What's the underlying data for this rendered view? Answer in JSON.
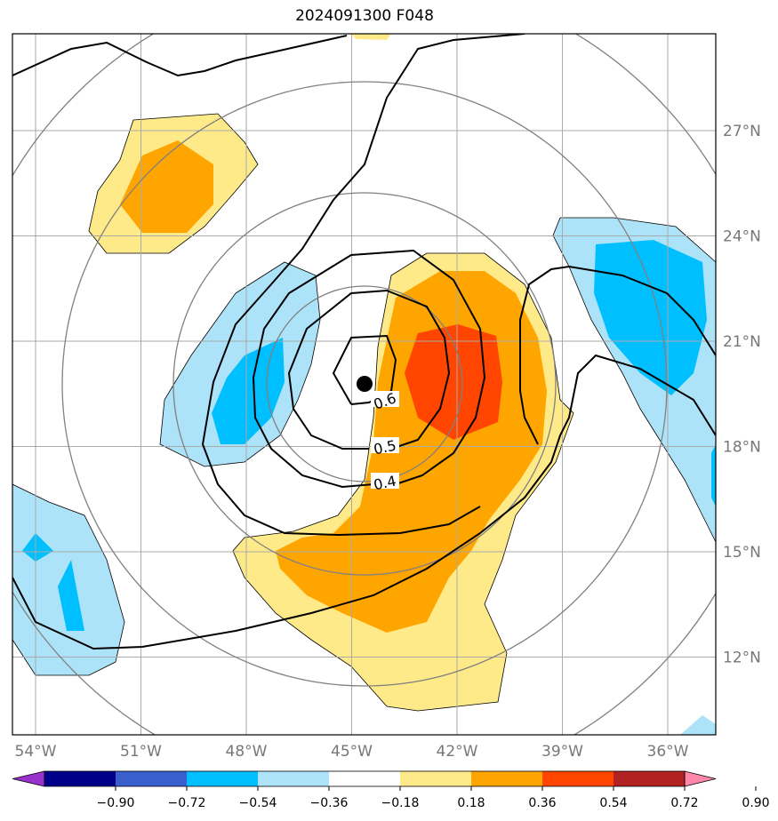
{
  "title": "2024091300 F048",
  "map": {
    "lon_range": [
      -55,
      -35
    ],
    "lat_range": [
      10,
      30
    ],
    "center": {
      "lon": -44.5,
      "lat": 19.7,
      "marker": "black-dot"
    },
    "lat_ticks": [
      {
        "value": 27,
        "label": "27°N"
      },
      {
        "value": 24,
        "label": "24°N"
      },
      {
        "value": 21,
        "label": "21°N"
      },
      {
        "value": 18,
        "label": "18°N"
      },
      {
        "value": 15,
        "label": "15°N"
      },
      {
        "value": 12,
        "label": "12°N"
      }
    ],
    "lon_ticks": [
      {
        "value": -54,
        "label": "54°W"
      },
      {
        "value": -51,
        "label": "51°W"
      },
      {
        "value": -48,
        "label": "48°W"
      },
      {
        "value": -45,
        "label": "45°W"
      },
      {
        "value": -42,
        "label": "42°W"
      },
      {
        "value": -39,
        "label": "39°W"
      },
      {
        "value": -36,
        "label": "36°W"
      }
    ],
    "contour_labels": [
      "0.6",
      "0.5",
      "0.4"
    ],
    "grid": true,
    "range_rings": true
  },
  "colorbar": {
    "ticks": [
      "−0.90",
      "−0.72",
      "−0.54",
      "−0.36",
      "−0.18",
      "0.18",
      "0.36",
      "0.54",
      "0.72",
      "0.90"
    ],
    "colors": [
      "#9932cc",
      "#00008b",
      "#3a5fcd",
      "#00bfff",
      "#ade3f8",
      "#ffffff",
      "#ffea8a",
      "#ffa500",
      "#ff4500",
      "#b22222",
      "#ff88aa"
    ],
    "extend": "both"
  }
}
